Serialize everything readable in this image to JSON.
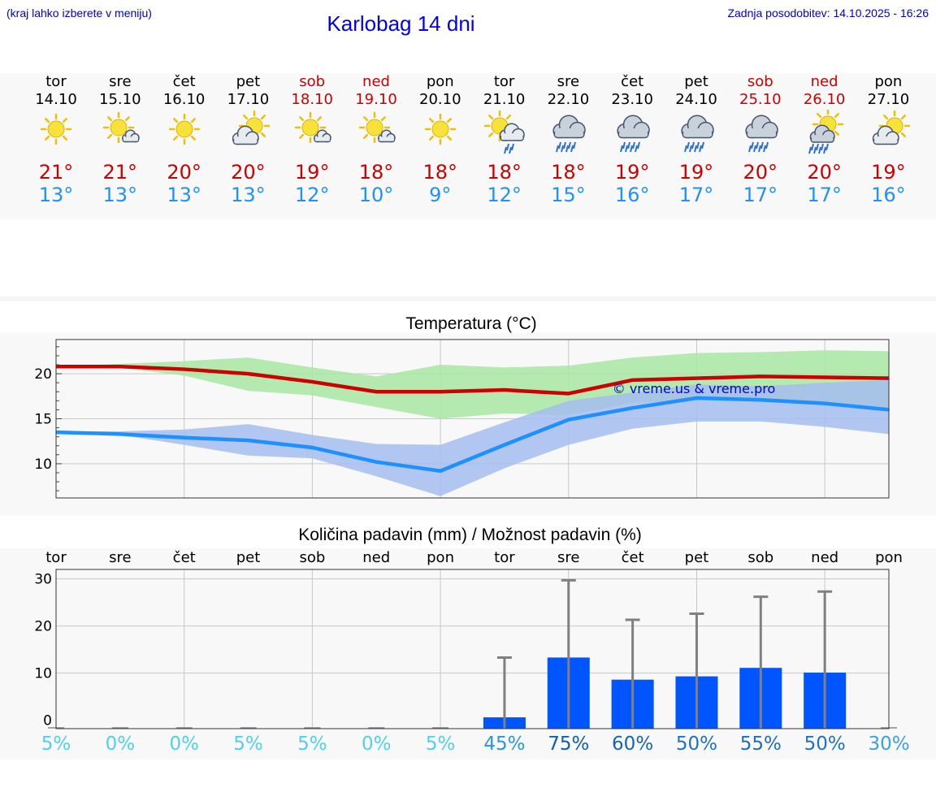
{
  "header": {
    "hint": "(kraj lahko izberete v meniju)",
    "title": "Karlobag 14 dni",
    "updated": "Zadnja posodobitev: 14.10.2025 - 16:26"
  },
  "colors": {
    "link": "#0000ee",
    "max_temp": "#cc0000",
    "min_temp": "#1e90ff",
    "max_band": "#a8e6a2",
    "min_band": "#a5bdf0",
    "bar": "#0055ff",
    "error_bar": "#808080"
  },
  "days": [
    {
      "name": "tor",
      "date": "14.10",
      "weekend": false,
      "icon": "sun-icon",
      "max": "21°",
      "min": "13°"
    },
    {
      "name": "sre",
      "date": "15.10",
      "weekend": false,
      "icon": "sun-small-cloud-icon",
      "max": "21°",
      "min": "13°"
    },
    {
      "name": "čet",
      "date": "16.10",
      "weekend": false,
      "icon": "sun-icon",
      "max": "20°",
      "min": "13°"
    },
    {
      "name": "pet",
      "date": "17.10",
      "weekend": false,
      "icon": "partly-cloudy-icon",
      "max": "20°",
      "min": "13°"
    },
    {
      "name": "sob",
      "date": "18.10",
      "weekend": true,
      "icon": "sun-small-cloud-icon",
      "max": "19°",
      "min": "12°"
    },
    {
      "name": "ned",
      "date": "19.10",
      "weekend": true,
      "icon": "sun-small-cloud-icon",
      "max": "18°",
      "min": "10°"
    },
    {
      "name": "pon",
      "date": "20.10",
      "weekend": false,
      "icon": "sun-icon",
      "max": "18°",
      "min": "9°"
    },
    {
      "name": "tor",
      "date": "21.10",
      "weekend": false,
      "icon": "sun-cloud-rain-icon",
      "max": "18°",
      "min": "12°"
    },
    {
      "name": "sre",
      "date": "22.10",
      "weekend": false,
      "icon": "cloud-rain-icon",
      "max": "18°",
      "min": "15°"
    },
    {
      "name": "čet",
      "date": "23.10",
      "weekend": false,
      "icon": "cloud-rain-icon",
      "max": "19°",
      "min": "16°"
    },
    {
      "name": "pet",
      "date": "24.10",
      "weekend": false,
      "icon": "cloud-rain-icon",
      "max": "19°",
      "min": "17°"
    },
    {
      "name": "sob",
      "date": "25.10",
      "weekend": true,
      "icon": "cloud-rain-icon",
      "max": "20°",
      "min": "17°"
    },
    {
      "name": "ned",
      "date": "26.10",
      "weekend": true,
      "icon": "sun-cloud-heavy-rain-icon",
      "max": "20°",
      "min": "17°"
    },
    {
      "name": "pon",
      "date": "27.10",
      "weekend": false,
      "icon": "partly-cloudy-icon",
      "max": "19°",
      "min": "16°"
    }
  ],
  "chart_data": [
    {
      "type": "line",
      "title": "Temperatura (°C)",
      "watermark": "© vreme.us & vreme.pro",
      "x": [
        "tor",
        "sre",
        "čet",
        "pet",
        "sob",
        "ned",
        "pon",
        "tor",
        "sre",
        "čet",
        "pet",
        "sob",
        "ned",
        "pon"
      ],
      "ylim": [
        6.2,
        23.8
      ],
      "yticks": [
        10,
        15,
        20
      ],
      "grid": true,
      "series": [
        {
          "name": "max",
          "values": [
            20.8,
            20.8,
            20.5,
            20.0,
            19.1,
            18.0,
            18.0,
            18.2,
            17.8,
            19.3,
            19.5,
            19.7,
            19.6,
            19.5
          ]
        },
        {
          "name": "min",
          "values": [
            13.5,
            13.3,
            12.9,
            12.6,
            11.8,
            10.2,
            9.2,
            12.1,
            14.9,
            16.2,
            17.3,
            17.1,
            16.7,
            16.0
          ]
        },
        {
          "name": "max-range",
          "low": [
            20.8,
            20.7,
            19.8,
            18.1,
            17.6,
            16.3,
            15.0,
            15.6,
            15.4,
            16.8,
            17.1,
            16.9,
            16.7,
            16.3
          ],
          "high": [
            20.8,
            21.1,
            21.4,
            21.8,
            20.7,
            19.7,
            21.0,
            20.7,
            20.9,
            21.8,
            22.3,
            22.4,
            22.6,
            22.5
          ]
        },
        {
          "name": "min-range",
          "low": [
            13.3,
            13.2,
            12.1,
            10.9,
            10.6,
            8.6,
            6.4,
            9.5,
            12.1,
            13.9,
            14.7,
            14.7,
            14.1,
            13.3
          ],
          "high": [
            13.6,
            13.6,
            13.8,
            14.4,
            13.2,
            12.2,
            12.1,
            14.6,
            17.0,
            17.9,
            18.8,
            18.6,
            19.0,
            19.3
          ]
        }
      ]
    },
    {
      "type": "bar",
      "title": "Količina padavin (mm) / Možnost padavin (%)",
      "categories": [
        "tor",
        "sre",
        "čet",
        "pet",
        "sob",
        "ned",
        "pon",
        "tor",
        "sre",
        "čet",
        "pet",
        "sob",
        "ned",
        "pon"
      ],
      "ylim": [
        -1.8,
        32.0
      ],
      "yticks": [
        0,
        10,
        20,
        30
      ],
      "grid": true,
      "series": [
        {
          "name": "padavine (mm)",
          "values": [
            0,
            0,
            0,
            0,
            0,
            0,
            0,
            0.6,
            13.3,
            8.6,
            9.3,
            11.1,
            10.1,
            0
          ]
        },
        {
          "name": "maks (mm)",
          "values": [
            0,
            0,
            0,
            0,
            0,
            0,
            0,
            13.3,
            29.7,
            21.3,
            22.6,
            26.2,
            27.3,
            0
          ]
        }
      ],
      "probability": [
        "5%",
        "0%",
        "0%",
        "5%",
        "5%",
        "0%",
        "5%",
        "45%",
        "75%",
        "60%",
        "50%",
        "55%",
        "50%",
        "30%"
      ],
      "probability_colors": [
        "#4fd0ee",
        "#4fd0ee",
        "#4fd0ee",
        "#4fd0ee",
        "#4fd0ee",
        "#4fd0ee",
        "#4fd0ee",
        "#2a95e0",
        "#0b5fb5",
        "#1664b8",
        "#1e72c4",
        "#1c6ec0",
        "#1e72c4",
        "#3aa0e6"
      ]
    }
  ]
}
